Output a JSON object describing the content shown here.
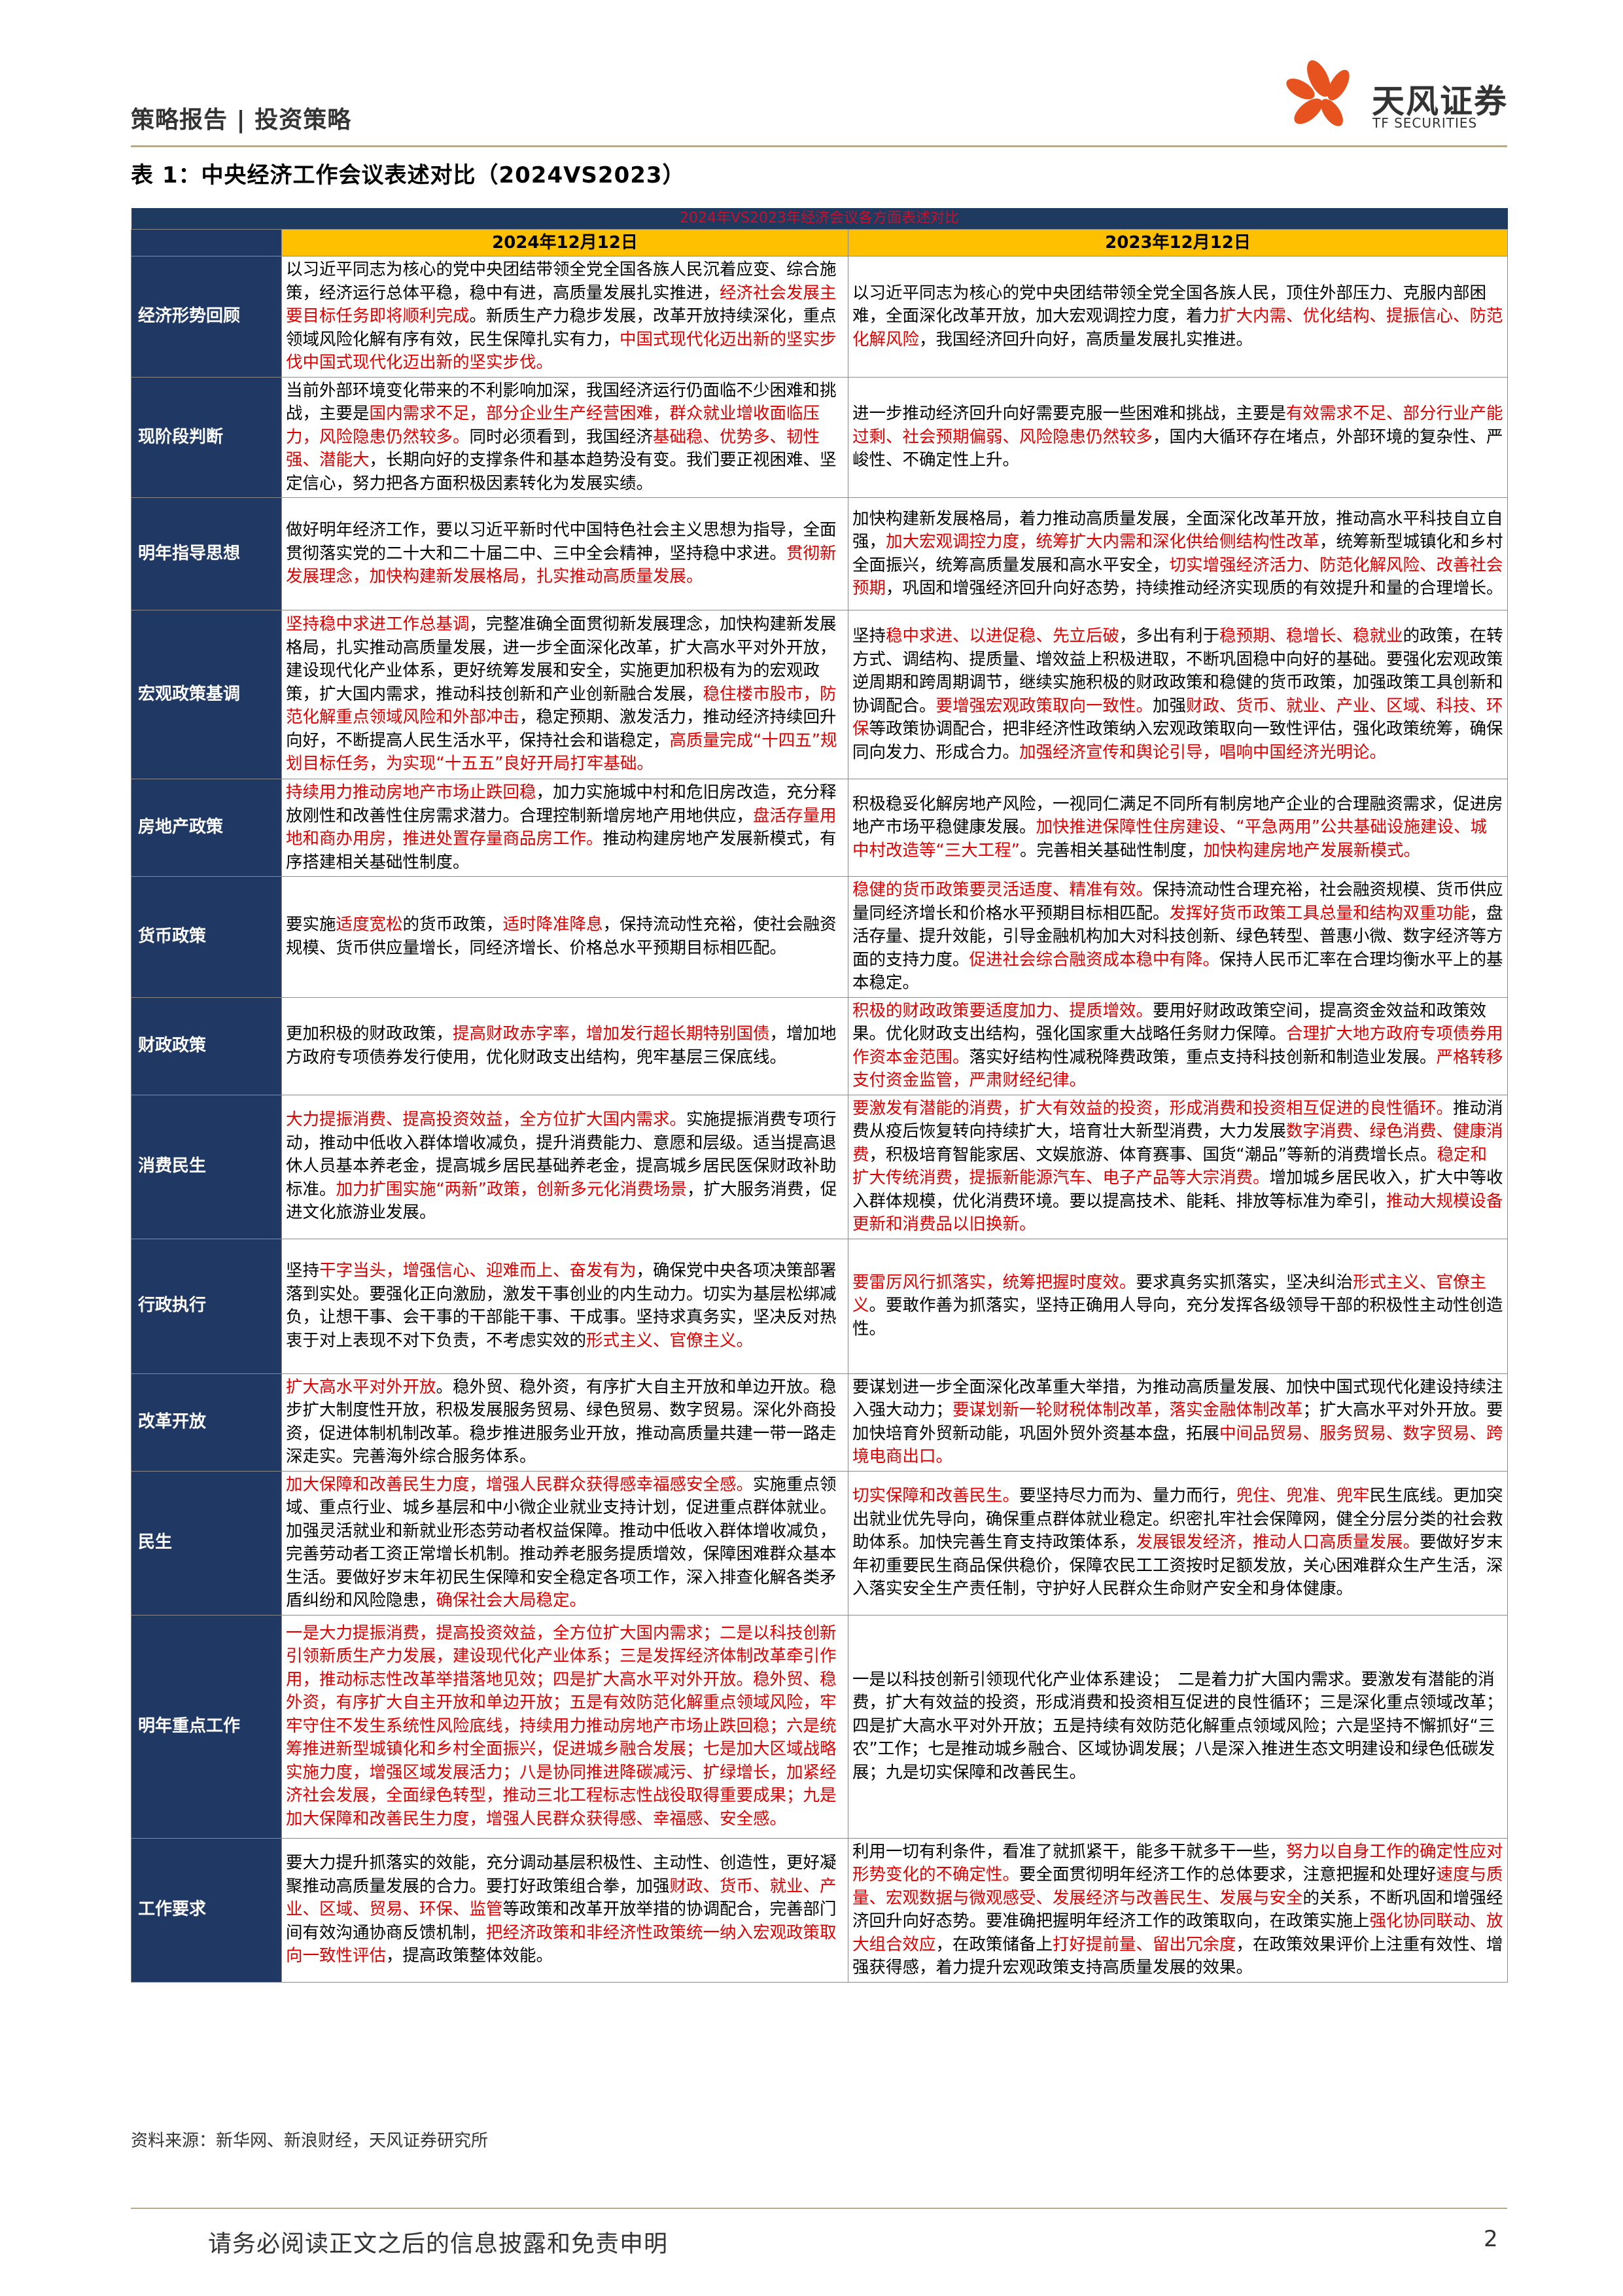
{
  "header": {
    "left": "策略报告 | 投资策略",
    "logo_name": "天风证券",
    "logo_sub": "TF SECURITIES",
    "brand_color": "#e6531e"
  },
  "table_title": "表 1：中央经济工作会议表述对比（2024VS2023）",
  "table": {
    "banner": "2024年VS2023年经济会议各方面表述对比",
    "col_2024": "2024年12月12日",
    "col_2023": "2023年12月12日",
    "rows": [
      {
        "label": "经济形势回顾",
        "c2024": [
          [
            "n",
            "以习近平同志为核心的党中央团结带领全党全国各族人民沉着应变、综合施策，经济运行总体平稳，稳中有进，高质量发展扎实推进，"
          ],
          [
            "r",
            "经济社会发展主要目标任务即将顺利完成"
          ],
          [
            "n",
            "。新质生产力稳步发展，改革开放持续深化，重点领域风险化解有序有效，民生保障扎实有力，"
          ],
          [
            "r",
            "中国式现代化迈出新的坚实步伐中国式现代化迈出新的坚实步伐。"
          ]
        ],
        "c2023": [
          [
            "n",
            "以习近平同志为核心的党中央团结带领全党全国各族人民，顶住外部压力、克服内部困难，全面深化改革开放，加大宏观调控力度，着力"
          ],
          [
            "r",
            "扩大内需、优化结构、提振信心、防范化解风险"
          ],
          [
            "n",
            "，我国经济回升向好，高质量发展扎实推进。"
          ]
        ]
      },
      {
        "label": "现阶段判断",
        "c2024": [
          [
            "n",
            "当前外部环境变化带来的不利影响加深，我国经济运行仍面临不少困难和挑战，主要是"
          ],
          [
            "r",
            "国内需求不足，部分企业生产经营困难，群众就业增收面临压力，风险隐患仍然较多。"
          ],
          [
            "n",
            "同时必须看到，我国经济"
          ],
          [
            "r",
            "基础稳、优势多、韧性强、潜能大"
          ],
          [
            "n",
            "，长期向好的支撑条件和基本趋势没有变。我们要正视困难、坚定信心，努力把各方面积极因素转化为发展实绩。"
          ]
        ],
        "c2023": [
          [
            "n",
            "进一步推动经济回升向好需要克服一些困难和挑战，主要是"
          ],
          [
            "r",
            "有效需求不足、部分行业产能过剩、社会预期偏弱、风险隐患仍然较多"
          ],
          [
            "n",
            "，国内大循环存在堵点，外部环境的复杂性、严峻性、不确定性上升。"
          ]
        ]
      },
      {
        "label": "明年指导思想",
        "c2024": [
          [
            "n",
            "做好明年经济工作，要以习近平新时代中国特色社会主义思想为指导，全面贯彻落实党的二十大和二十届二中、三中全会精神，坚持稳中求进。"
          ],
          [
            "r",
            "贯彻新发展理念，加快构建新发展格局，扎实推动高质量发展。"
          ]
        ],
        "c2023": [
          [
            "n",
            "加快构建新发展格局，着力推动高质量发展，全面深化改革开放，推动高水平科技自立自强，"
          ],
          [
            "r",
            "加大宏观调控力度，统筹扩大内需和深化供给侧结构性改革"
          ],
          [
            "n",
            "，统筹新型城镇化和乡村全面振兴，统筹高质量发展和高水平安全，"
          ],
          [
            "r",
            "切实增强经济活力、防范化解风险、改善社会预期"
          ],
          [
            "n",
            "，巩固和增强经济回升向好态势，持续推动经济实现质的有效提升和量的合理增长。"
          ]
        ]
      },
      {
        "label": "宏观政策基调",
        "c2024": [
          [
            "r",
            "坚持稳中求进工作总基调"
          ],
          [
            "n",
            "，完整准确全面贯彻新发展理念，加快构建新发展格局，扎实推动高质量发展，进一步全面深化改革，扩大高水平对外开放，建设现代化产业体系，更好统筹发展和安全，实施更加积极有为的宏观政策，扩大国内需求，推动科技创新和产业创新融合发展，"
          ],
          [
            "r",
            "稳住楼市股市，防范化解重点领域风险和外部冲击"
          ],
          [
            "n",
            "，稳定预期、激发活力，推动经济持续回升向好，不断提高人民生活水平，保持社会和谐稳定，"
          ],
          [
            "r",
            "高质量完成“十四五”规划目标任务，为实现“十五五”良好开局打牢基础。"
          ]
        ],
        "c2023": [
          [
            "n",
            "坚持"
          ],
          [
            "r",
            "稳中求进、以进促稳、先立后破"
          ],
          [
            "n",
            "，多出有利于"
          ],
          [
            "r",
            "稳预期、稳增长、稳就业"
          ],
          [
            "n",
            "的政策，在转方式、调结构、提质量、增效益上积极进取，不断巩固稳中向好的基础。要强化宏观政策逆周期和跨周期调节，继续实施积极的财政政策和稳健的货币政策，加强政策工具创新和协调配合。"
          ],
          [
            "r",
            "要增强宏观政策取向一致性。"
          ],
          [
            "n",
            "加强"
          ],
          [
            "r",
            "财政、货币、就业、产业、区域、科技、环保"
          ],
          [
            "n",
            "等政策协调配合，把非经济性政策纳入宏观政策取向一致性评估，强化政策统筹，确保同向发力、形成合力。"
          ],
          [
            "r",
            "加强经济宣传和舆论引导，唱响中国经济光明论。"
          ]
        ]
      },
      {
        "label": "房地产政策",
        "c2024": [
          [
            "r",
            "持续用力推动房地产市场止跌回稳"
          ],
          [
            "n",
            "，加力实施城中村和危旧房改造，充分释放刚性和改善性住房需求潜力。合理控制新增房地产用地供应，"
          ],
          [
            "r",
            "盘活存量用地和商办用房，推进处置存量商品房工作。"
          ],
          [
            "n",
            "推动构建房地产发展新模式，有序搭建相关基础性制度。"
          ]
        ],
        "c2023": [
          [
            "n",
            "积极稳妥化解房地产风险，一视同仁满足不同所有制房地产企业的合理融资需求，促进房地产市场平稳健康发展。"
          ],
          [
            "r",
            "加快推进保障性住房建设、“平急两用”公共基础设施建设、城中村改造等“三大工程”"
          ],
          [
            "n",
            "。完善相关基础性制度，"
          ],
          [
            "r",
            "加快构建房地产发展新模式。"
          ]
        ]
      },
      {
        "label": "货币政策",
        "c2024": [
          [
            "n",
            "要实施"
          ],
          [
            "r",
            "适度宽松"
          ],
          [
            "n",
            "的货币政策，"
          ],
          [
            "r",
            "适时降准降息"
          ],
          [
            "n",
            "，保持流动性充裕，使社会融资规模、货币供应量增长，同经济增长、价格总水平预期目标相匹配。"
          ]
        ],
        "c2023": [
          [
            "r",
            "稳健的货币政策要灵活适度、精准有效。"
          ],
          [
            "n",
            "保持流动性合理充裕，社会融资规模、货币供应量同经济增长和价格水平预期目标相匹配。"
          ],
          [
            "r",
            "发挥好货币政策工具总量和结构双重功能"
          ],
          [
            "n",
            "，盘活存量、提升效能，引导金融机构加大对科技创新、绿色转型、普惠小微、数字经济等方面的支持力度。"
          ],
          [
            "r",
            "促进社会综合融资成本稳中有降。"
          ],
          [
            "n",
            "保持人民币汇率在合理均衡水平上的基本稳定。"
          ]
        ]
      },
      {
        "label": "财政政策",
        "c2024": [
          [
            "n",
            "更加积极的财政政策，"
          ],
          [
            "r",
            "提高财政赤字率，增加发行超长期特别国债"
          ],
          [
            "n",
            "，增加地方政府专项债券发行使用，优化财政支出结构，兜牢基层三保底线。"
          ]
        ],
        "c2023": [
          [
            "r",
            "积极的财政政策要适度加力、提质增效。"
          ],
          [
            "n",
            "要用好财政政策空间，提高资金效益和政策效果。优化财政支出结构，强化国家重大战略任务财力保障。"
          ],
          [
            "r",
            "合理扩大地方政府专项债券用作资本金范围。"
          ],
          [
            "n",
            "落实好结构性减税降费政策，重点支持科技创新和制造业发展。"
          ],
          [
            "r",
            "严格转移支付资金监管，严肃财经纪律。"
          ]
        ]
      },
      {
        "label": "消费民生",
        "c2024": [
          [
            "r",
            "大力提振消费、提高投资效益，全方位扩大国内需求。"
          ],
          [
            "n",
            "实施提振消费专项行动，推动中低收入群体增收减负，提升消费能力、意愿和层级。适当提高退休人员基本养老金，提高城乡居民基础养老金，提高城乡居民医保财政补助标准。"
          ],
          [
            "r",
            "加力扩围实施“两新”政策，创新多元化消费场景"
          ],
          [
            "n",
            "，扩大服务消费，促进文化旅游业发展。"
          ]
        ],
        "c2023": [
          [
            "r",
            "要激发有潜能的消费，扩大有效益的投资，形成消费和投资相互促进的良性循环。"
          ],
          [
            "n",
            "推动消费从疫后恢复转向持续扩大，培育壮大新型消费，大力发展"
          ],
          [
            "r",
            "数字消费、绿色消费、健康消费"
          ],
          [
            "n",
            "，积极培育智能家居、文娱旅游、体育赛事、国货“潮品”等新的消费增长点。"
          ],
          [
            "r",
            "稳定和扩大传统消费，提振新能源汽车、电子产品等大宗消费。"
          ],
          [
            "n",
            "增加城乡居民收入，扩大中等收入群体规模，优化消费环境。要以提高技术、能耗、排放等标准为牵引，"
          ],
          [
            "r",
            "推动大规模设备更新和消费品以旧换新。"
          ]
        ]
      },
      {
        "label": "行政执行",
        "c2024": [
          [
            "n",
            "坚持"
          ],
          [
            "r",
            "干字当头，增强信心、迎难而上、奋发有为"
          ],
          [
            "n",
            "，确保党中央各项决策部署落到实处。要强化正向激励，激发干事创业的内生动力。切实为基层松绑减负，让想干事、会干事的干部能干事、干成事。坚持求真务实，坚决反对热衷于对上表现不对下负责，不考虑实效的"
          ],
          [
            "r",
            "形式主义、官僚主义。"
          ]
        ],
        "c2023": [
          [
            "r",
            "要雷厉风行抓落实，统筹把握时度效。"
          ],
          [
            "n",
            "要求真务实抓落实，坚决纠治"
          ],
          [
            "r",
            "形式主义、官僚主义"
          ],
          [
            "n",
            "。要敢作善为抓落实，坚持正确用人导向，充分发挥各级领导干部的积极性主动性创造性。"
          ]
        ]
      },
      {
        "label": "改革开放",
        "c2024": [
          [
            "r",
            "扩大高水平对外开放"
          ],
          [
            "n",
            "。稳外贸、稳外资，有序扩大自主开放和单边开放。稳步扩大制度性开放，积极发展服务贸易、绿色贸易、数字贸易。深化外商投资，促进体制机制改革。稳步推进服务业开放，推动高质量共建一带一路走深走实。完善海外综合服务体系。"
          ]
        ],
        "c2023": [
          [
            "n",
            "要谋划进一步全面深化改革重大举措，为推动高质量发展、加快中国式现代化建设持续注入强大动力；"
          ],
          [
            "r",
            "要谋划新一轮财税体制改革，落实金融体制改革"
          ],
          [
            "n",
            "；扩大高水平对外开放。要加快培育外贸新动能，巩固外贸外资基本盘，拓展"
          ],
          [
            "r",
            "中间品贸易、服务贸易、数字贸易、跨境电商出口。"
          ]
        ]
      },
      {
        "label": "民生",
        "c2024": [
          [
            "r",
            "加大保障和改善民生力度，增强人民群众获得感幸福感安全感。"
          ],
          [
            "n",
            "实施重点领域、重点行业、城乡基层和中小微企业就业支持计划，促进重点群体就业。加强灵活就业和新就业形态劳动者权益保障。推动中低收入群体增收减负，完善劳动者工资正常增长机制。推动养老服务提质增效，保障困难群众基本生活。要做好岁末年初民生保障和安全稳定各项工作，深入排查化解各类矛盾纠纷和风险隐患，"
          ],
          [
            "r",
            "确保社会大局稳定。"
          ]
        ],
        "c2023": [
          [
            "r",
            "切实保障和改善民生。"
          ],
          [
            "n",
            "要坚持尽力而为、量力而行，"
          ],
          [
            "r",
            "兜住、兜准、兜牢"
          ],
          [
            "n",
            "民生底线。更加突出就业优先导向，确保重点群体就业稳定。织密扎牢社会保障网，健全分层分类的社会救助体系。加快完善生育支持政策体系，"
          ],
          [
            "r",
            "发展银发经济，推动人口高质量发展。"
          ],
          [
            "n",
            "要做好岁末年初重要民生商品保供稳价，保障农民工工资按时足额发放，关心困难群众生产生活，深入落实安全生产责任制，守护好人民群众生命财产安全和身体健康。"
          ]
        ]
      },
      {
        "label": "明年重点工作",
        "c2024": [
          [
            "r",
            "一是大力提振消费，提高投资效益，全方位扩大国内需求；二是以科技创新引领新质生产力发展，建设现代化产业体系；三是发挥经济体制改革牵引作用，推动标志性改革举措落地见效；四是扩大高水平对外开放。稳外贸、稳外资，有序扩大自主开放和单边开放；五是有效防范化解重点领域风险，牢牢守住不发生系统性风险底线，持续用力推动房地产市场止跌回稳；六是统筹推进新型城镇化和乡村全面振兴，促进城乡融合发展；七是加大区域战略实施力度，增强区域发展活力；八是协同推进降碳减污、扩绿增长，加紧经济社会发展，全面绿色转型，推动三北工程标志性战役取得重要成果；九是加大保障和改善民生力度，增强人民群众获得感、幸福感、安全感。"
          ]
        ],
        "c2023": [
          [
            "n",
            "一是以科技创新引领现代化产业体系建设；　二是着力扩大国内需求。要激发有潜能的消费，扩大有效益的投资，形成消费和投资相互促进的良性循环；三是深化重点领域改革；四是扩大高水平对外开放；五是持续有效防范化解重点领域风险；六是坚持不懈抓好“三农”工作；七是推动城乡融合、区域协调发展；八是深入推进生态文明建设和绿色低碳发展；九是切实保障和改善民生。"
          ]
        ]
      },
      {
        "label": "工作要求",
        "c2024": [
          [
            "n",
            "要大力提升抓落实的效能，充分调动基层积极性、主动性、创造性，更好凝聚推动高质量发展的合力。要打好政策组合拳，加强"
          ],
          [
            "r",
            "财政、货币、就业、产业、区域、贸易、环保、监管"
          ],
          [
            "n",
            "等政策和改革开放举措的协调配合，完善部门间有效沟通协商反馈机制，"
          ],
          [
            "r",
            "把经济政策和非经济性政策统一纳入宏观政策取向一致性评估"
          ],
          [
            "n",
            "，提高政策整体效能。"
          ]
        ],
        "c2023": [
          [
            "n",
            "利用一切有利条件，看准了就抓紧干，能多干就多干一些，"
          ],
          [
            "r",
            "努力以自身工作的确定性应对形势变化的不确定性。"
          ],
          [
            "n",
            "要全面贯彻明年经济工作的总体要求，注意把握和处理好"
          ],
          [
            "r",
            "速度与质量、宏观数据与微观感受、发展经济与改善民生、发展与安全"
          ],
          [
            "n",
            "的关系，不断巩固和增强经济回升向好态势。要准确把握明年经济工作的政策取向，在政策实施上"
          ],
          [
            "r",
            "强化协同联动、放大组合效应"
          ],
          [
            "n",
            "，在政策储备上"
          ],
          [
            "r",
            "打好提前量、留出冗余度"
          ],
          [
            "n",
            "，在政策效果评价上注重有效性、增强获得感，着力提升宏观政策支持高质量发展的效果。"
          ]
        ]
      }
    ]
  },
  "source": "资料来源：新华网、新浪财经，天风证券研究所",
  "footer": {
    "text": "请务必阅读正文之后的信息披露和免责申明",
    "page": "2"
  }
}
